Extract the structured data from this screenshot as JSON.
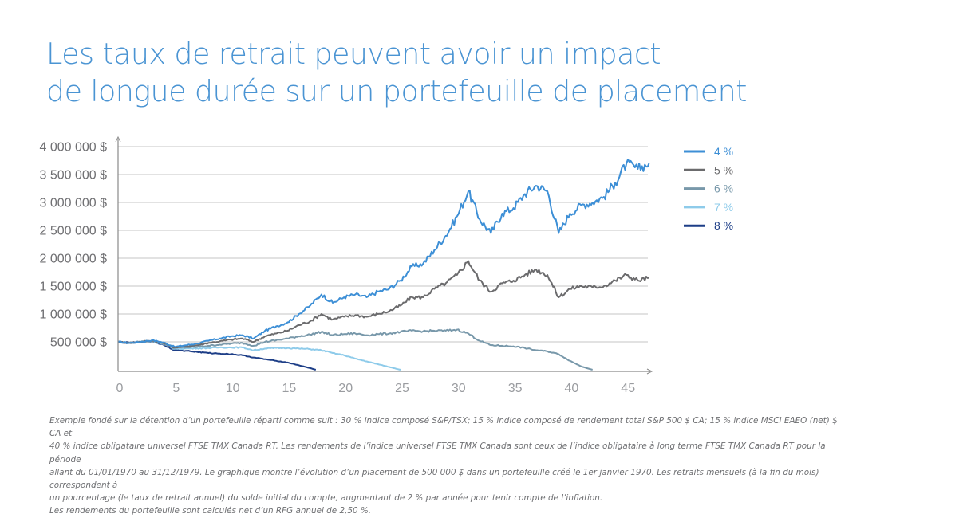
{
  "title": {
    "line1": "Les taux de retrait peuvent avoir un impact",
    "line2": "de longue durée sur un portefeuille de placement"
  },
  "footnote": {
    "lines": [
      "Exemple fondé sur la détention d’un portefeuille réparti comme suit : 30 % indice composé S&P/TSX; 15 % indice composé de rendement total S&P 500 $ CA; 15 % indice MSCI EAEO (net) $ CA et",
      "40 % indice obligataire universel FTSE TMX Canada RT. Les rendements de l’indice universel FTSE TMX Canada sont ceux de l’indice obligataire à long terme FTSE TMX Canada RT pour la période",
      "allant du 01/01/1970 au 31/12/1979. Le graphique montre l’évolution d’un placement de 500 000 $ dans un portefeuille créé le 1er janvier 1970. Les retraits mensuels (à la fin du mois) correspondent à",
      "un pourcentage (le taux de retrait annuel) du solde initial du compte, augmentant de 2 % par année pour tenir compte de l’inflation.",
      "Les rendements du portefeuille sont calculés net d’un RFG annuel de 2,50 %."
    ]
  },
  "chart_data": {
    "type": "line",
    "title": "",
    "xlabel": "",
    "ylabel": "",
    "xlim": [
      0,
      47
    ],
    "ylim": [
      0,
      4000000
    ],
    "grid": "horizontal",
    "legend_position": "right",
    "x_ticks": [
      "0",
      "5",
      "10",
      "15",
      "20",
      "25",
      "30",
      "35",
      "40",
      "45"
    ],
    "x_tick_values": [
      0,
      5,
      10,
      15,
      20,
      25,
      30,
      35,
      40,
      45
    ],
    "y_ticks": [
      "500 000 $",
      "1 000 000 $",
      "1 500 000 $",
      "2 000 000 $",
      "2 500 000 $",
      "3 000 000 $",
      "3 500 000 $",
      "4 000 000 $"
    ],
    "y_tick_values": [
      500000,
      1000000,
      1500000,
      2000000,
      2500000,
      3000000,
      3500000,
      4000000
    ],
    "series": [
      {
        "name": "4 %",
        "color": "#3d8fd6",
        "x": [
          0,
          1,
          2,
          3,
          4,
          5,
          6,
          7,
          8,
          9,
          10,
          11,
          12,
          13,
          14,
          15,
          16,
          17,
          18,
          19,
          20,
          21,
          22,
          23,
          24,
          25,
          26,
          27,
          28,
          29,
          30,
          31,
          32,
          33,
          34,
          35,
          36,
          37,
          38,
          39,
          40,
          41,
          42,
          43,
          44,
          45,
          46,
          47
        ],
        "values": [
          500000,
          480000,
          500000,
          530000,
          490000,
          410000,
          440000,
          470000,
          520000,
          560000,
          600000,
          620000,
          560000,
          700000,
          780000,
          850000,
          1000000,
          1150000,
          1350000,
          1200000,
          1300000,
          1350000,
          1300000,
          1400000,
          1450000,
          1600000,
          1850000,
          1900000,
          2150000,
          2400000,
          2750000,
          3200000,
          2700000,
          2450000,
          2800000,
          2900000,
          3150000,
          3300000,
          3200000,
          2450000,
          2800000,
          2950000,
          3000000,
          3100000,
          3350000,
          3700000,
          3600000,
          3700000
        ]
      },
      {
        "name": "5 %",
        "color": "#6b6b6d",
        "x": [
          0,
          1,
          2,
          3,
          4,
          5,
          6,
          7,
          8,
          9,
          10,
          11,
          12,
          13,
          14,
          15,
          16,
          17,
          18,
          19,
          20,
          21,
          22,
          23,
          24,
          25,
          26,
          27,
          28,
          29,
          30,
          31,
          32,
          33,
          34,
          35,
          36,
          37,
          38,
          39,
          40,
          41,
          42,
          43,
          44,
          45,
          46,
          47
        ],
        "values": [
          500000,
          480000,
          500000,
          525000,
          480000,
          400000,
          420000,
          440000,
          480000,
          510000,
          540000,
          560000,
          500000,
          600000,
          650000,
          700000,
          800000,
          870000,
          1000000,
          900000,
          950000,
          980000,
          950000,
          1000000,
          1050000,
          1150000,
          1300000,
          1300000,
          1450000,
          1550000,
          1700000,
          1950000,
          1600000,
          1400000,
          1550000,
          1600000,
          1700000,
          1800000,
          1700000,
          1300000,
          1450000,
          1500000,
          1480000,
          1500000,
          1600000,
          1700000,
          1600000,
          1650000
        ]
      },
      {
        "name": "6 %",
        "color": "#7898aa",
        "x": [
          0,
          1,
          2,
          3,
          4,
          5,
          6,
          7,
          8,
          9,
          10,
          11,
          12,
          13,
          14,
          15,
          16,
          17,
          18,
          19,
          20,
          21,
          22,
          23,
          24,
          25,
          26,
          27,
          28,
          29,
          30,
          31,
          32,
          33,
          34,
          35,
          36,
          37,
          38,
          39,
          40,
          41,
          42
        ],
        "values": [
          500000,
          480000,
          500000,
          520000,
          470000,
          390000,
          400000,
          410000,
          430000,
          450000,
          470000,
          480000,
          430000,
          500000,
          530000,
          560000,
          600000,
          630000,
          680000,
          620000,
          640000,
          650000,
          620000,
          640000,
          650000,
          680000,
          700000,
          690000,
          700000,
          700000,
          720000,
          650000,
          520000,
          440000,
          430000,
          420000,
          390000,
          350000,
          330000,
          280000,
          160000,
          60000,
          0
        ]
      },
      {
        "name": "7 %",
        "color": "#8ecbea",
        "x": [
          0,
          1,
          2,
          3,
          4,
          5,
          6,
          7,
          8,
          9,
          10,
          11,
          12,
          13,
          14,
          15,
          16,
          17,
          18,
          19,
          20,
          21,
          22,
          23,
          24,
          25
        ],
        "values": [
          500000,
          480000,
          500000,
          515000,
          460000,
          375000,
          380000,
          385000,
          390000,
          400000,
          400000,
          400000,
          350000,
          380000,
          390000,
          390000,
          380000,
          370000,
          350000,
          300000,
          260000,
          200000,
          150000,
          100000,
          50000,
          0
        ]
      },
      {
        "name": "8 %",
        "color": "#1d3e87",
        "x": [
          0,
          1,
          2,
          3,
          4,
          5,
          6,
          7,
          8,
          9,
          10,
          11,
          12,
          13,
          14,
          15,
          16,
          17,
          17.5
        ],
        "values": [
          500000,
          480000,
          495000,
          510000,
          450000,
          355000,
          340000,
          320000,
          300000,
          290000,
          280000,
          260000,
          220000,
          190000,
          160000,
          130000,
          80000,
          30000,
          0
        ]
      }
    ]
  }
}
